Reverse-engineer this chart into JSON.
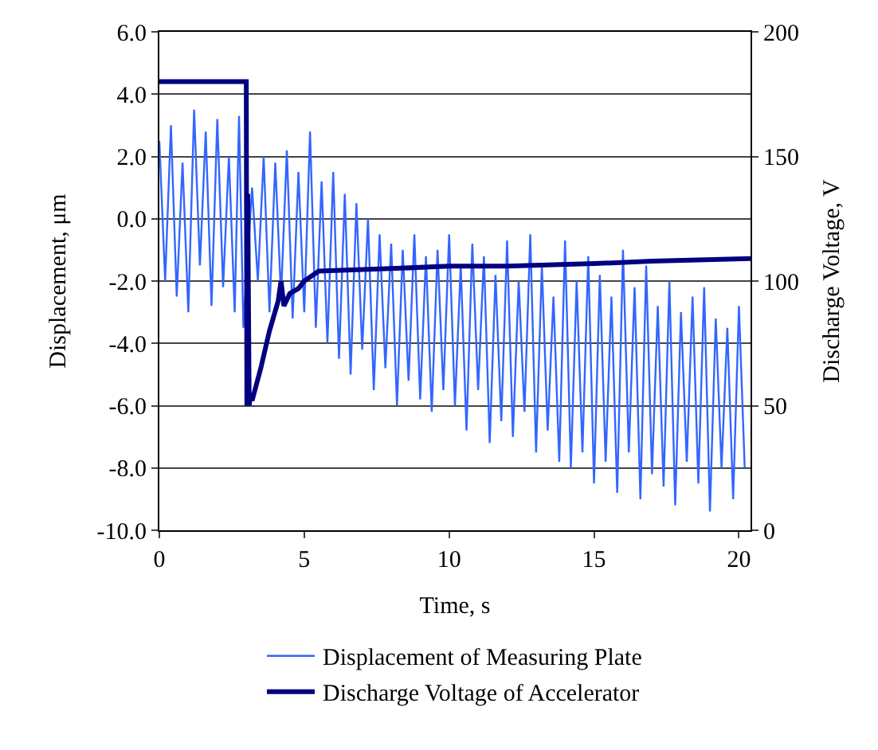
{
  "chart_data": {
    "type": "line",
    "xlabel": "Time, s",
    "ylabel": "Displacement, μm",
    "y2label": "Discharge Voltage, V",
    "xlim": [
      0,
      20.4
    ],
    "xticks": [
      0,
      5,
      10,
      15,
      20
    ],
    "ylim": [
      -10,
      6
    ],
    "yticks": [
      {
        "value": -10,
        "label": "-10.0"
      },
      {
        "value": -8,
        "label": "-8.0"
      },
      {
        "value": -6,
        "label": "-6.0"
      },
      {
        "value": -4,
        "label": "-4.0"
      },
      {
        "value": -2,
        "label": "-2.0"
      },
      {
        "value": 0,
        "label": "0.0"
      },
      {
        "value": 2,
        "label": "2.0"
      },
      {
        "value": 4,
        "label": "4.0"
      },
      {
        "value": 6,
        "label": "6.0"
      }
    ],
    "y2lim": [
      0,
      200
    ],
    "y2ticks": [
      0,
      50,
      100,
      150,
      200
    ],
    "grid": "y",
    "legend": "bottom",
    "marker": "none",
    "line_style": "solid",
    "series": [
      {
        "name": "Displacement of Measuring Plate",
        "color": "#3366ff",
        "x": [
          0,
          0.2,
          0.4,
          0.6,
          0.8,
          1.0,
          1.2,
          1.4,
          1.6,
          1.8,
          2.0,
          2.2,
          2.4,
          2.6,
          2.75,
          2.9,
          3.2,
          3.4,
          3.6,
          3.8,
          4.0,
          4.2,
          4.4,
          4.6,
          4.8,
          5.0,
          5.2,
          5.4,
          5.6,
          5.8,
          6.0,
          6.2,
          6.4,
          6.6,
          6.8,
          7.0,
          7.2,
          7.4,
          7.6,
          7.8,
          8.0,
          8.2,
          8.4,
          8.6,
          8.8,
          9.0,
          9.2,
          9.4,
          9.6,
          9.8,
          10.0,
          10.2,
          10.4,
          10.6,
          10.8,
          11.0,
          11.2,
          11.4,
          11.6,
          11.8,
          12.0,
          12.2,
          12.4,
          12.6,
          12.8,
          13.0,
          13.2,
          13.4,
          13.6,
          13.8,
          14.0,
          14.2,
          14.4,
          14.6,
          14.8,
          15.0,
          15.2,
          15.4,
          15.6,
          15.8,
          16.0,
          16.2,
          16.4,
          16.6,
          16.8,
          17.0,
          17.2,
          17.4,
          17.6,
          17.8,
          18.0,
          18.2,
          18.4,
          18.6,
          18.8,
          19.0,
          19.2,
          19.4,
          19.6,
          19.8,
          20.0,
          20.2
        ],
        "values": [
          2.5,
          -2.0,
          3.0,
          -2.5,
          1.8,
          -3.0,
          3.5,
          -1.5,
          2.8,
          -2.8,
          3.2,
          -2.2,
          2.0,
          -3.0,
          3.3,
          -3.5,
          1.0,
          -2.0,
          2.0,
          -3.0,
          1.8,
          -2.5,
          2.2,
          -3.2,
          1.5,
          -3.0,
          2.8,
          -3.5,
          1.2,
          -4.0,
          1.5,
          -4.5,
          0.8,
          -5.0,
          0.5,
          -4.2,
          0.0,
          -5.5,
          -0.5,
          -4.8,
          -0.8,
          -6.0,
          -1.0,
          -5.2,
          -0.5,
          -5.8,
          -1.2,
          -6.2,
          -1.0,
          -5.5,
          -0.5,
          -6.0,
          -1.5,
          -6.8,
          -0.8,
          -5.5,
          -1.2,
          -7.2,
          -1.8,
          -6.5,
          -0.7,
          -7.0,
          -2.0,
          -6.2,
          -0.5,
          -7.5,
          -1.5,
          -6.8,
          -2.5,
          -7.8,
          -0.7,
          -8.0,
          -2.0,
          -7.5,
          -1.2,
          -8.5,
          -1.8,
          -7.8,
          -2.5,
          -8.8,
          -1.0,
          -7.5,
          -2.2,
          -9.0,
          -1.5,
          -8.2,
          -2.8,
          -8.6,
          -2.0,
          -9.2,
          -3.0,
          -7.8,
          -2.5,
          -8.5,
          -2.2,
          -9.4,
          -3.2,
          -8.0,
          -3.5,
          -9.0,
          -2.8,
          -8.0
        ]
      },
      {
        "name": "Discharge Voltage of Accelerator",
        "color": "#000080",
        "axis": "y2",
        "x": [
          0,
          3.0,
          3.02,
          3.05,
          3.1,
          3.15,
          3.2,
          3.5,
          3.8,
          4.0,
          4.1,
          4.2,
          4.3,
          4.5,
          4.8,
          5.0,
          5.5,
          8,
          10,
          12,
          15,
          17,
          20.4
        ],
        "values": [
          180,
          180,
          50,
          135,
          50,
          55,
          52,
          65,
          80,
          88,
          92,
          100,
          90,
          95,
          97,
          100,
          104,
          105,
          106,
          106,
          107,
          108,
          109
        ]
      }
    ]
  }
}
